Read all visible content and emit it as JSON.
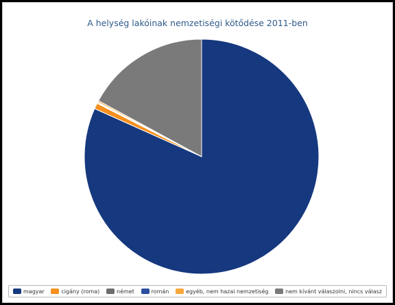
{
  "chart_data": {
    "type": "pie",
    "title": "A helység lakóinak nemzetiségi kötődése 2011-ben",
    "categories": [
      "magyar",
      "cigány (roma)",
      "német",
      "román",
      "egyéb, nem hazai nemzetiség",
      "nem kívánt válaszolni, nincs válasz"
    ],
    "values": [
      81.7,
      0.8,
      0.1,
      0.1,
      0.2,
      17.1
    ],
    "colors": [
      "#16387e",
      "#f7901e",
      "#6d6d6d",
      "#2e4fa0",
      "#f7a83d",
      "#7a7a7a"
    ],
    "legend_position": "bottom"
  }
}
